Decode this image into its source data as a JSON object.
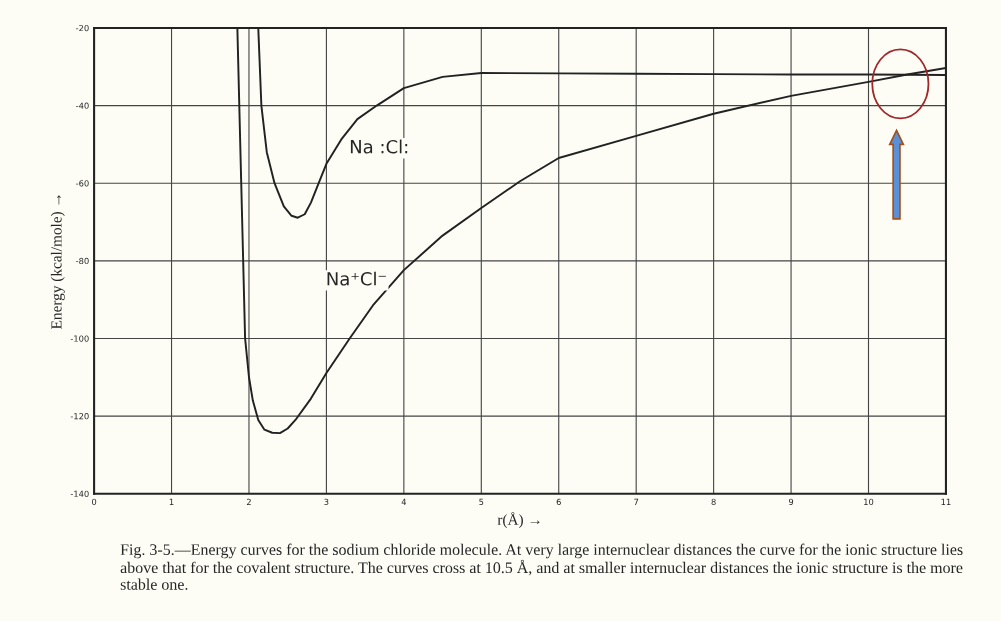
{
  "chart_data": {
    "type": "line",
    "xlabel": "r(Å) →",
    "ylabel": "Energy (kcal/mole) →",
    "xlim": [
      0,
      11
    ],
    "xticks": [
      0,
      1,
      2,
      3,
      4,
      5,
      6,
      7,
      8,
      9,
      10,
      11
    ],
    "ylim": [
      -140,
      -20
    ],
    "yticks": [
      -140,
      -120,
      -100,
      -80,
      -60,
      -40,
      -20
    ],
    "grid": true,
    "marker": "none",
    "line_style": "solid",
    "series": [
      {
        "name": "Na :Cl:",
        "color": "#222222",
        "x": [
          2.12,
          2.16,
          2.23,
          2.33,
          2.45,
          2.55,
          2.63,
          2.72,
          2.8,
          2.9,
          3.0,
          3.2,
          3.4,
          3.65,
          4.0,
          4.5,
          5.0,
          6.0,
          7.0,
          8.0,
          9.0,
          10.0,
          11.0
        ],
        "values": [
          -20,
          -40,
          -52,
          -60,
          -66,
          -68.4,
          -68.9,
          -68,
          -65,
          -60,
          -55,
          -48.5,
          -43.5,
          -40,
          -35.5,
          -32.6,
          -31.6,
          -31.7,
          -31.8,
          -31.9,
          -32,
          -32,
          -32.1
        ]
      },
      {
        "name": "Na⁺Cl⁻",
        "color": "#222222",
        "x": [
          1.85,
          1.9,
          1.95,
          2.0,
          2.05,
          2.12,
          2.2,
          2.3,
          2.4,
          2.5,
          2.6,
          2.8,
          3.0,
          3.3,
          3.6,
          4.0,
          4.5,
          5.0,
          5.5,
          6.0,
          7.0,
          8.0,
          9.0,
          10.0,
          10.5,
          11.0
        ],
        "values": [
          -20,
          -60,
          -100,
          -110,
          -116,
          -121,
          -123.5,
          -124.3,
          -124.4,
          -123.2,
          -121,
          -115.5,
          -108.9,
          -100,
          -91.5,
          -82.4,
          -73.5,
          -66.4,
          -59.5,
          -53.5,
          -47.8,
          -42.1,
          -37.5,
          -33.9,
          -32,
          -30.3
        ]
      }
    ],
    "annotations": [
      "Fig. 3-5.—Energy curves for the sodium chloride molecule. At very large internuclear distances the curve for the ionic structure lies above that for the covalent structure. The curves cross at 10.5 Å, and at smaller internuclear distances the ionic structure is the more stable one."
    ]
  }
}
